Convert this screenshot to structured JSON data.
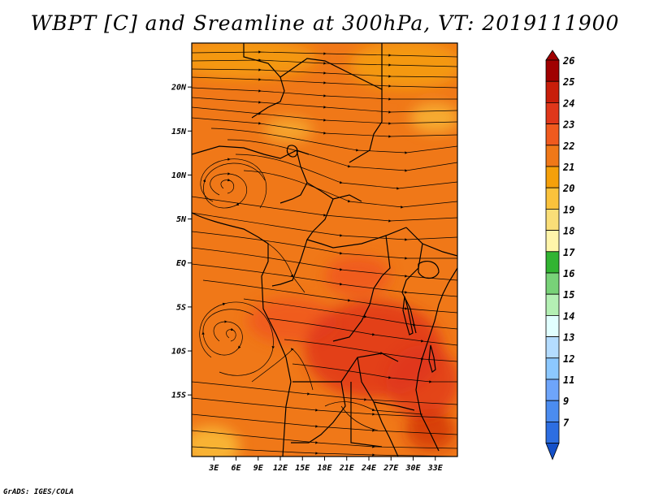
{
  "title": "WBPT [C] and Sreamline at 300hPa, VT: 2019111900",
  "footer": "GrADS: IGES/COLA",
  "map": {
    "lon_range": [
      0,
      36
    ],
    "lat_range": [
      -22,
      25
    ],
    "x_ticks": [
      {
        "value": 3,
        "label": "3E"
      },
      {
        "value": 6,
        "label": "6E"
      },
      {
        "value": 9,
        "label": "9E"
      },
      {
        "value": 12,
        "label": "12E"
      },
      {
        "value": 15,
        "label": "15E"
      },
      {
        "value": 18,
        "label": "18E"
      },
      {
        "value": 21,
        "label": "21E"
      },
      {
        "value": 24,
        "label": "24E"
      },
      {
        "value": 27,
        "label": "27E"
      },
      {
        "value": 30,
        "label": "30E"
      },
      {
        "value": 33,
        "label": "33E"
      }
    ],
    "y_ticks": [
      {
        "value": 20,
        "label": "20N"
      },
      {
        "value": 15,
        "label": "15N"
      },
      {
        "value": 10,
        "label": "10N"
      },
      {
        "value": 5,
        "label": "5N"
      },
      {
        "value": 0,
        "label": "EQ"
      },
      {
        "value": -5,
        "label": "5S"
      },
      {
        "value": -10,
        "label": "10S"
      },
      {
        "value": -15,
        "label": "15S"
      }
    ],
    "base_color": "#f07818"
  },
  "colorbar": {
    "levels": [
      {
        "label": "26",
        "color": "#a00000"
      },
      {
        "label": "25",
        "color": "#c81e0a"
      },
      {
        "label": "24",
        "color": "#e0371a"
      },
      {
        "label": "23",
        "color": "#f05a1e"
      },
      {
        "label": "22",
        "color": "#f07818"
      },
      {
        "label": "21",
        "color": "#f5a00a"
      },
      {
        "label": "20",
        "color": "#fac23c"
      },
      {
        "label": "19",
        "color": "#fade78"
      },
      {
        "label": "18",
        "color": "#fff5aa"
      },
      {
        "label": "17",
        "color": "#32b432"
      },
      {
        "label": "16",
        "color": "#78d278"
      },
      {
        "label": "15",
        "color": "#b4f0b4"
      },
      {
        "label": "14",
        "color": "#e1ffff"
      },
      {
        "label": "13",
        "color": "#b4dcff"
      },
      {
        "label": "12",
        "color": "#8cc8ff"
      },
      {
        "label": "11",
        "color": "#6ea5fa"
      },
      {
        "label": "9",
        "color": "#4b8cf0"
      },
      {
        "label": "7",
        "color": "#2d6ee1"
      },
      {
        "label": "",
        "color": "#1450c8"
      }
    ]
  }
}
